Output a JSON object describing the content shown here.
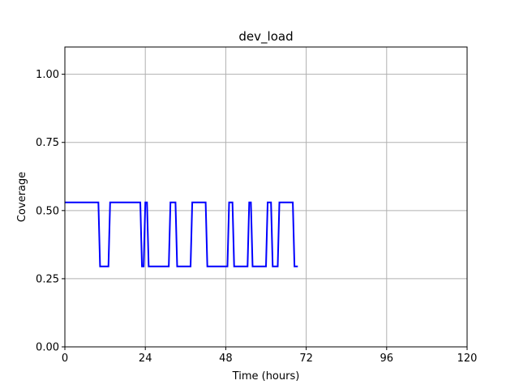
{
  "chart_data": {
    "type": "line",
    "title": "dev_load",
    "xlabel": "Time (hours)",
    "ylabel": "Coverage",
    "xlim": [
      0,
      120
    ],
    "ylim": [
      0,
      1.1
    ],
    "xticks": [
      0,
      24,
      48,
      72,
      96,
      120
    ],
    "yticks": [
      0.0,
      0.25,
      0.5,
      0.75,
      1.0
    ],
    "xtick_labels": [
      "0",
      "24",
      "48",
      "72",
      "96",
      "120"
    ],
    "ytick_labels": [
      "0.00",
      "0.25",
      "0.50",
      "0.75",
      "1.00"
    ],
    "grid": true,
    "series": [
      {
        "color": "#0000ff",
        "x": [
          0,
          10,
          10.5,
          13,
          13.5,
          22.5,
          23,
          23.5,
          24,
          24.5,
          25,
          25.5,
          31,
          31.5,
          33,
          33.5,
          37.5,
          38,
          42,
          42.5,
          48.5,
          49,
          50,
          50.5,
          54.5,
          55,
          55.5,
          56,
          60,
          60.5,
          61.5,
          62,
          63.5,
          64,
          68,
          68.5,
          69.5
        ],
        "y": [
          0.53,
          0.53,
          0.295,
          0.295,
          0.53,
          0.53,
          0.295,
          0.295,
          0.53,
          0.53,
          0.295,
          0.295,
          0.295,
          0.53,
          0.53,
          0.295,
          0.295,
          0.53,
          0.53,
          0.295,
          0.295,
          0.53,
          0.53,
          0.295,
          0.295,
          0.53,
          0.53,
          0.295,
          0.295,
          0.53,
          0.53,
          0.295,
          0.295,
          0.53,
          0.53,
          0.295,
          0.295
        ]
      }
    ]
  }
}
